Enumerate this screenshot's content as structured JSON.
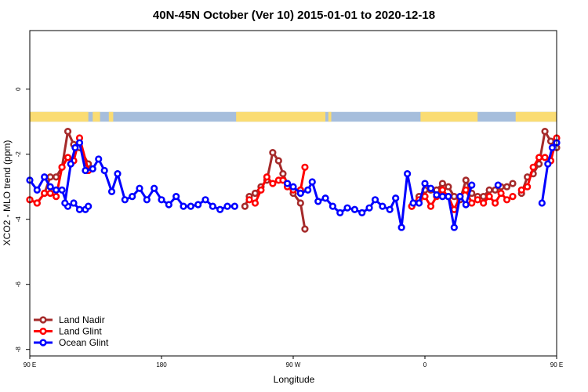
{
  "chart_data": {
    "type": "line",
    "title": "40N-45N October (Ver 10)   2015-01-01 to 2020-12-18",
    "xlabel": "Longitude",
    "ylabel": "XCO2 - MLO trend (ppm)",
    "xlim": [
      90,
      450
    ],
    "ylim": [
      -8.2,
      1.8
    ],
    "x_ticks": [
      {
        "value": 90,
        "label": "90 E"
      },
      {
        "value": 180,
        "label": "180"
      },
      {
        "value": 270,
        "label": "90 W"
      },
      {
        "value": 360,
        "label": "0"
      },
      {
        "value": 450,
        "label": "90 E"
      },
      {
        "value": 540,
        "label": "180"
      }
    ],
    "y_ticks": [
      {
        "value": 0,
        "label": "0"
      },
      {
        "value": -2,
        "label": "-2"
      },
      {
        "value": -4,
        "label": "-4"
      },
      {
        "value": -6,
        "label": "-6"
      },
      {
        "value": -8,
        "label": "-8"
      }
    ],
    "legend_position": "bottom-left",
    "land_mask": {
      "y_range": [
        -1.0,
        -0.7
      ],
      "land_color": "#fadc73",
      "ocean_color": "#a6bedc",
      "land_segments": [
        [
          90,
          130
        ],
        [
          133,
          138
        ],
        [
          144,
          147
        ],
        [
          231,
          292
        ],
        [
          294,
          296
        ],
        [
          357,
          396
        ],
        [
          422,
          455
        ],
        [
          498,
          500
        ],
        [
          502,
          505
        ]
      ]
    },
    "series": [
      {
        "name": "Land Nadir",
        "color": "#a52a2a",
        "segments": [
          [
            [
              90,
              -3.4
            ],
            [
              95,
              -3.5
            ],
            [
              100,
              -3.2
            ],
            [
              104,
              -2.7
            ],
            [
              108,
              -2.7
            ],
            [
              112,
              -2.4
            ],
            [
              116,
              -1.3
            ],
            [
              120,
              -1.7
            ],
            [
              124,
              -1.8
            ],
            [
              130,
              -2.3
            ]
          ],
          [
            [
              237,
              -3.6
            ],
            [
              240,
              -3.3
            ],
            [
              244,
              -3.2
            ],
            [
              248,
              -3.0
            ],
            [
              252,
              -2.8
            ],
            [
              256,
              -1.95
            ],
            [
              260,
              -2.2
            ],
            [
              263,
              -2.6
            ],
            [
              266,
              -2.9
            ],
            [
              270,
              -3.2
            ],
            [
              275,
              -3.5
            ],
            [
              278,
              -4.3
            ]
          ],
          [
            [
              351,
              -3.6
            ],
            [
              356,
              -3.3
            ],
            [
              360,
              -3.1
            ],
            [
              364,
              -3.1
            ],
            [
              368,
              -3.1
            ],
            [
              372,
              -2.9
            ],
            [
              376,
              -3.0
            ],
            [
              380,
              -3.3
            ],
            [
              384,
              -3.4
            ],
            [
              388,
              -2.8
            ],
            [
              392,
              -3.2
            ],
            [
              396,
              -3.3
            ],
            [
              400,
              -3.3
            ],
            [
              404,
              -3.1
            ],
            [
              408,
              -3.1
            ],
            [
              412,
              -3.0
            ],
            [
              416,
              -3.0
            ],
            [
              420,
              -2.9
            ]
          ],
          [
            [
              426,
              -3.2
            ],
            [
              430,
              -2.7
            ],
            [
              434,
              -2.6
            ],
            [
              438,
              -2.3
            ],
            [
              442,
              -1.3
            ],
            [
              446,
              -1.6
            ],
            [
              450,
              -1.8
            ]
          ]
        ]
      },
      {
        "name": "Land Glint",
        "color": "#ff0000",
        "segments": [
          [
            [
              90,
              -3.4
            ],
            [
              95,
              -3.5
            ],
            [
              100,
              -3.2
            ],
            [
              104,
              -3.2
            ],
            [
              108,
              -3.3
            ],
            [
              112,
              -2.4
            ],
            [
              116,
              -2.1
            ],
            [
              120,
              -2.2
            ],
            [
              124,
              -1.5
            ],
            [
              130,
              -2.5
            ]
          ],
          [
            [
              240,
              -3.4
            ],
            [
              244,
              -3.5
            ],
            [
              248,
              -3.1
            ],
            [
              252,
              -2.7
            ],
            [
              256,
              -2.9
            ],
            [
              260,
              -2.8
            ],
            [
              263,
              -2.8
            ],
            [
              266,
              -3.0
            ],
            [
              270,
              -3.1
            ],
            [
              275,
              -3.1
            ],
            [
              278,
              -2.4
            ]
          ],
          [
            [
              351,
              -3.6
            ],
            [
              356,
              -3.4
            ],
            [
              360,
              -3.3
            ],
            [
              364,
              -3.6
            ],
            [
              368,
              -3.3
            ],
            [
              372,
              -3.1
            ],
            [
              376,
              -3.3
            ],
            [
              380,
              -3.7
            ],
            [
              384,
              -3.3
            ],
            [
              388,
              -3.1
            ],
            [
              392,
              -3.5
            ],
            [
              396,
              -3.4
            ],
            [
              400,
              -3.5
            ],
            [
              404,
              -3.3
            ],
            [
              408,
              -3.5
            ],
            [
              412,
              -3.2
            ],
            [
              416,
              -3.4
            ],
            [
              420,
              -3.3
            ]
          ],
          [
            [
              426,
              -3.1
            ],
            [
              430,
              -3.0
            ],
            [
              434,
              -2.4
            ],
            [
              438,
              -2.1
            ],
            [
              442,
              -2.1
            ],
            [
              446,
              -2.2
            ],
            [
              450,
              -1.5
            ]
          ]
        ]
      },
      {
        "name": "Ocean Glint",
        "color": "#0000ff",
        "segments": [
          [
            [
              90,
              -2.8
            ],
            [
              95,
              -3.1
            ],
            [
              100,
              -2.7
            ],
            [
              104,
              -3.0
            ],
            [
              108,
              -3.1
            ],
            [
              112,
              -3.1
            ],
            [
              116,
              -3.6
            ],
            [
              120,
              -3.5
            ],
            [
              124,
              -3.7
            ],
            [
              128,
              -3.7
            ],
            [
              130,
              -3.6
            ]
          ],
          [
            [
              114,
              -3.5
            ],
            [
              118,
              -2.3
            ],
            [
              121,
              -1.8
            ],
            [
              124,
              -1.65
            ],
            [
              128,
              -2.5
            ],
            [
              133,
              -2.45
            ],
            [
              137,
              -2.15
            ],
            [
              141,
              -2.5
            ],
            [
              146,
              -3.15
            ],
            [
              150,
              -2.6
            ],
            [
              155,
              -3.4
            ],
            [
              160,
              -3.3
            ],
            [
              165,
              -3.05
            ],
            [
              170,
              -3.4
            ],
            [
              175,
              -3.05
            ],
            [
              180,
              -3.4
            ],
            [
              185,
              -3.55
            ],
            [
              190,
              -3.3
            ],
            [
              195,
              -3.6
            ],
            [
              200,
              -3.6
            ],
            [
              205,
              -3.55
            ],
            [
              210,
              -3.4
            ],
            [
              215,
              -3.6
            ],
            [
              220,
              -3.7
            ],
            [
              225,
              -3.6
            ],
            [
              230,
              -3.6
            ]
          ],
          [
            [
              266,
              -2.9
            ],
            [
              270,
              -3.0
            ],
            [
              275,
              -3.2
            ],
            [
              280,
              -3.1
            ],
            [
              283,
              -2.85
            ],
            [
              287,
              -3.45
            ],
            [
              292,
              -3.35
            ],
            [
              297,
              -3.6
            ],
            [
              302,
              -3.8
            ],
            [
              307,
              -3.65
            ],
            [
              312,
              -3.7
            ],
            [
              317,
              -3.8
            ],
            [
              322,
              -3.65
            ],
            [
              326,
              -3.4
            ],
            [
              331,
              -3.6
            ],
            [
              336,
              -3.7
            ],
            [
              340,
              -3.35
            ],
            [
              344,
              -4.25
            ],
            [
              348,
              -2.6
            ],
            [
              352,
              -3.5
            ],
            [
              356,
              -3.5
            ],
            [
              360,
              -2.9
            ],
            [
              364,
              -3.05
            ],
            [
              368,
              -3.25
            ],
            [
              372,
              -3.3
            ],
            [
              376,
              -3.3
            ],
            [
              380,
              -4.25
            ],
            [
              384,
              -3.3
            ],
            [
              388,
              -3.55
            ],
            [
              392,
              -2.95
            ]
          ],
          [
            [
              410,
              -2.95
            ]
          ],
          [
            [
              440,
              -3.5
            ],
            [
              444,
              -2.3
            ],
            [
              447,
              -1.8
            ],
            [
              450,
              -1.65
            ]
          ]
        ]
      }
    ]
  }
}
